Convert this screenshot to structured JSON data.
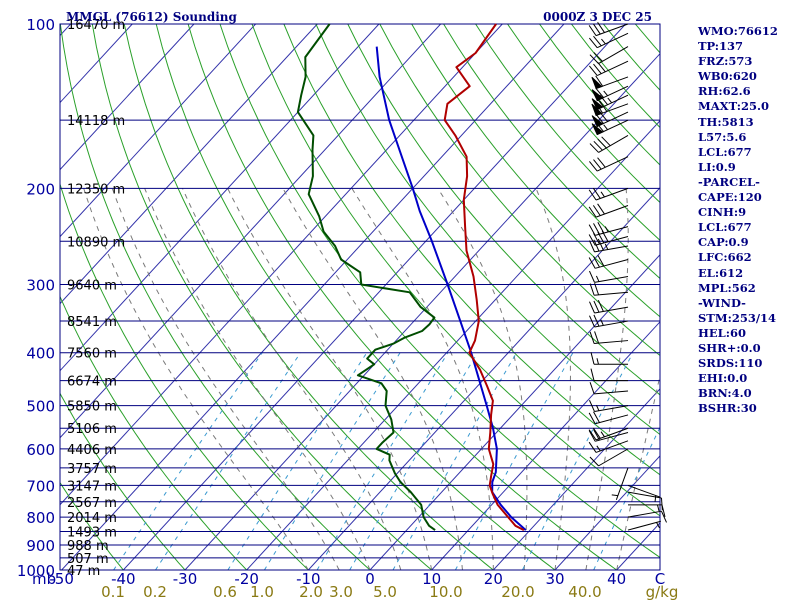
{
  "chart_data": {
    "type": "skew-t sounding",
    "title_left": "MMGL (76612) Sounding",
    "title_right": "0000Z  3 DEC 25",
    "pressure_ticks": [
      100,
      200,
      300,
      400,
      500,
      600,
      700,
      800,
      900,
      1000
    ],
    "x_axis_unit": "mb",
    "temperature_ticks": [
      "-50",
      "-40",
      "-30",
      "-20",
      "-10",
      "0",
      "10",
      "20",
      "30",
      "40"
    ],
    "temperature_end_label": "C",
    "mixing_ratio_labels": [
      "0.1",
      "0.2",
      "0.6",
      "1.0",
      "2.0",
      "3.0",
      "5.0",
      "10.0",
      "20.0",
      "40.0"
    ],
    "mixing_ratio_unit": "g/kg",
    "heights": [
      {
        "p": 100,
        "label": "16470 m"
      },
      {
        "p": 150,
        "label": "14118 m"
      },
      {
        "p": 200,
        "label": "12350 m"
      },
      {
        "p": 250,
        "label": "10890 m"
      },
      {
        "p": 300,
        "label": "9640 m"
      },
      {
        "p": 350,
        "label": "8541 m"
      },
      {
        "p": 400,
        "label": "7560 m"
      },
      {
        "p": 450,
        "label": "6674 m"
      },
      {
        "p": 500,
        "label": "5850 m"
      },
      {
        "p": 550,
        "label": "5106 m"
      },
      {
        "p": 600,
        "label": "4406 m"
      },
      {
        "p": 650,
        "label": "3757 m"
      },
      {
        "p": 700,
        "label": "3147 m"
      },
      {
        "p": 750,
        "label": "2567 m"
      },
      {
        "p": 800,
        "label": "2014 m"
      },
      {
        "p": 850,
        "label": "1493 m"
      },
      {
        "p": 900,
        "label": "988 m"
      },
      {
        "p": 950,
        "label": "507 m"
      },
      {
        "p": 1000,
        "label": "47 m"
      }
    ],
    "temperature_profile": [
      [
        845,
        19.0
      ],
      [
        830,
        17.0
      ],
      [
        800,
        14.5
      ],
      [
        760,
        11.0
      ],
      [
        725,
        8.5
      ],
      [
        700,
        6.8
      ],
      [
        670,
        5.5
      ],
      [
        640,
        4.2
      ],
      [
        600,
        1.2
      ],
      [
        560,
        -1.0
      ],
      [
        520,
        -3.5
      ],
      [
        490,
        -5.3
      ],
      [
        460,
        -8.5
      ],
      [
        430,
        -12.0
      ],
      [
        400,
        -16.3
      ],
      [
        380,
        -17.2
      ],
      [
        350,
        -19.5
      ],
      [
        320,
        -23.0
      ],
      [
        290,
        -27.0
      ],
      [
        260,
        -32.0
      ],
      [
        235,
        -35.8
      ],
      [
        210,
        -40.0
      ],
      [
        190,
        -43.0
      ],
      [
        175,
        -46.0
      ],
      [
        160,
        -51.0
      ],
      [
        150,
        -55.0
      ],
      [
        140,
        -57.0
      ],
      [
        130,
        -56.0
      ],
      [
        120,
        -61.0
      ],
      [
        113,
        -60.0
      ],
      [
        100,
        -61.0
      ]
    ],
    "dewpoint_profile": [
      [
        845,
        4.6
      ],
      [
        830,
        3.0
      ],
      [
        800,
        0.8
      ],
      [
        760,
        -1.4
      ],
      [
        720,
        -5.0
      ],
      [
        690,
        -8.2
      ],
      [
        665,
        -10.4
      ],
      [
        630,
        -13.2
      ],
      [
        615,
        -14.0
      ],
      [
        600,
        -17.0
      ],
      [
        585,
        -17.0
      ],
      [
        560,
        -16.7
      ],
      [
        530,
        -19.0
      ],
      [
        500,
        -22.0
      ],
      [
        470,
        -24.0
      ],
      [
        455,
        -26.0
      ],
      [
        440,
        -31.0
      ],
      [
        420,
        -30.0
      ],
      [
        410,
        -32.0
      ],
      [
        395,
        -32.0
      ],
      [
        385,
        -30.0
      ],
      [
        375,
        -29.0
      ],
      [
        365,
        -27.2
      ],
      [
        355,
        -27.0
      ],
      [
        345,
        -27.2
      ],
      [
        330,
        -31.0
      ],
      [
        310,
        -35.0
      ],
      [
        300,
        -44.0
      ],
      [
        285,
        -46.0
      ],
      [
        270,
        -51.0
      ],
      [
        255,
        -54.0
      ],
      [
        240,
        -58.0
      ],
      [
        225,
        -61.0
      ],
      [
        205,
        -66.0
      ],
      [
        190,
        -68.0
      ],
      [
        170,
        -72.0
      ],
      [
        160,
        -74.0
      ],
      [
        145,
        -80.0
      ],
      [
        135,
        -82.0
      ],
      [
        125,
        -84.0
      ],
      [
        115,
        -87.0
      ],
      [
        100,
        -88.0
      ]
    ],
    "parcel_profile": [
      [
        845,
        19.3
      ],
      [
        800,
        15.0
      ],
      [
        760,
        11.5
      ],
      [
        720,
        8.2
      ],
      [
        690,
        6.7
      ],
      [
        662,
        5.8
      ],
      [
        600,
        2.5
      ],
      [
        550,
        -1.2
      ],
      [
        500,
        -5.6
      ],
      [
        450,
        -10.5
      ],
      [
        400,
        -16.0
      ],
      [
        350,
        -22.5
      ],
      [
        300,
        -30.0
      ],
      [
        250,
        -39.0
      ],
      [
        220,
        -45.5
      ],
      [
        200,
        -50.0
      ],
      [
        175,
        -56.5
      ],
      [
        150,
        -64.0
      ],
      [
        125,
        -72.0
      ],
      [
        110,
        -77.0
      ]
    ],
    "wind_barbs": [
      {
        "p": 845,
        "dir": 75,
        "spd": 5
      },
      {
        "p": 800,
        "dir": 80,
        "spd": 10
      },
      {
        "p": 760,
        "dir": 90,
        "spd": 15
      },
      {
        "p": 720,
        "dir": 100,
        "spd": 10
      },
      {
        "p": 700,
        "dir": 110,
        "spd": 5
      },
      {
        "p": 650,
        "dir": 200,
        "spd": 5
      },
      {
        "p": 600,
        "dir": 240,
        "spd": 10
      },
      {
        "p": 580,
        "dir": 250,
        "spd": 15
      },
      {
        "p": 560,
        "dir": 255,
        "spd": 20
      },
      {
        "p": 550,
        "dir": 250,
        "spd": 25
      },
      {
        "p": 520,
        "dir": 255,
        "spd": 20
      },
      {
        "p": 500,
        "dir": 260,
        "spd": 15
      },
      {
        "p": 470,
        "dir": 265,
        "spd": 10
      },
      {
        "p": 450,
        "dir": 270,
        "spd": 10
      },
      {
        "p": 420,
        "dir": 270,
        "spd": 15
      },
      {
        "p": 380,
        "dir": 265,
        "spd": 20
      },
      {
        "p": 350,
        "dir": 260,
        "spd": 25
      },
      {
        "p": 330,
        "dir": 260,
        "spd": 30
      },
      {
        "p": 310,
        "dir": 265,
        "spd": 20
      },
      {
        "p": 290,
        "dir": 260,
        "spd": 15
      },
      {
        "p": 270,
        "dir": 255,
        "spd": 30
      },
      {
        "p": 255,
        "dir": 260,
        "spd": 35
      },
      {
        "p": 245,
        "dir": 255,
        "spd": 40
      },
      {
        "p": 235,
        "dir": 255,
        "spd": 35
      },
      {
        "p": 215,
        "dir": 250,
        "spd": 30
      },
      {
        "p": 200,
        "dir": 250,
        "spd": 25
      },
      {
        "p": 175,
        "dir": 245,
        "spd": 30
      },
      {
        "p": 160,
        "dir": 240,
        "spd": 40
      },
      {
        "p": 150,
        "dir": 245,
        "spd": 65
      },
      {
        "p": 145,
        "dir": 245,
        "spd": 70
      },
      {
        "p": 140,
        "dir": 250,
        "spd": 70
      },
      {
        "p": 135,
        "dir": 245,
        "spd": 75
      },
      {
        "p": 130,
        "dir": 245,
        "spd": 65
      },
      {
        "p": 125,
        "dir": 250,
        "spd": 60
      },
      {
        "p": 117,
        "dir": 245,
        "spd": 30
      },
      {
        "p": 110,
        "dir": 240,
        "spd": 20
      },
      {
        "p": 104,
        "dir": 245,
        "spd": 25
      },
      {
        "p": 100,
        "dir": 250,
        "spd": 30
      }
    ],
    "stats": [
      "WMO:76612",
      "TP:137",
      "FRZ:573",
      "WB0:620",
      "RH:62.6",
      "MAXT:25.0",
      "TH:5813",
      "L57:5.6",
      "LCL:677",
      "LI:0.9",
      "-PARCEL-",
      "CAPE:120",
      "CINH:9",
      "LCL:677",
      "CAP:0.9",
      "LFC:662",
      "EL:612",
      "MPL:562",
      "-WIND-",
      "STM:253/14",
      "HEL:60",
      "SHR+:0.0",
      "SRDS:110",
      "EHI:0.0",
      "BRN:4.0",
      "BSHR:30"
    ],
    "colors": {
      "background": "#ffffff",
      "isobar": "#000080",
      "isotherm": "#3333aa",
      "dry_adiabat": "#2aa02a",
      "moist_adiabat": "#7a7a7a",
      "mixing_ratio": "#3a9ad0",
      "temperature": "#b00000",
      "dewpoint": "#004d00",
      "parcel": "#0000c8",
      "wind_barb": "#000000",
      "text": "#000080",
      "mixing_ratio_text": "#8a7a14"
    }
  }
}
